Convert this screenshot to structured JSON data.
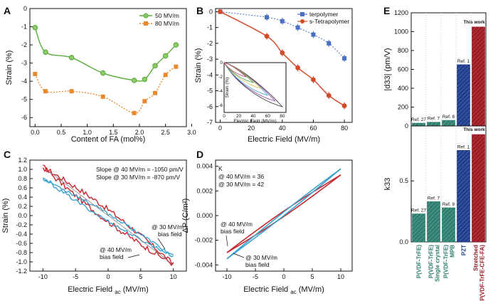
{
  "chart_data": [
    {
      "panel": "A",
      "type": "line",
      "xlabel": "Content of FA (mol%)",
      "ylabel": "Strain (%)",
      "xlim": [
        -0.1,
        2.9
      ],
      "ylim": [
        -6.5,
        0
      ],
      "xticks": [
        "0.0",
        "0.5",
        "1.0",
        "1.5",
        "2.0",
        "2.5",
        "3.0"
      ],
      "yticks": [
        "0",
        "-1",
        "-2",
        "-3",
        "-4",
        "-5",
        "-6"
      ],
      "legend": [
        "50 MV/m",
        "80 MV/m"
      ],
      "series": [
        {
          "name": "50 MV/m",
          "color": "#5bab3a",
          "style": "solid",
          "x": [
            0,
            0.2,
            0.7,
            1.3,
            1.9,
            2.1,
            2.3,
            2.5,
            2.7
          ],
          "y": [
            -1.05,
            -2.4,
            -2.7,
            -3.55,
            -3.95,
            -3.9,
            -3.15,
            -2.6,
            -2.0
          ]
        },
        {
          "name": "80 MV/m",
          "color": "#e8892e",
          "style": "dotted",
          "x": [
            0,
            0.2,
            0.7,
            1.3,
            1.9,
            2.1,
            2.3,
            2.5,
            2.7
          ],
          "y": [
            -3.6,
            -4.55,
            -4.55,
            -4.85,
            -5.75,
            -5.1,
            -4.65,
            -3.65,
            -3.2
          ]
        }
      ]
    },
    {
      "panel": "B",
      "type": "line",
      "xlabel": "Electric Field (MV/m)",
      "ylabel": "Strain (%)",
      "xlim": [
        -3,
        85
      ],
      "ylim": [
        -7,
        0.2
      ],
      "xticks": [
        "0",
        "20",
        "40",
        "60",
        "80"
      ],
      "yticks": [
        "0",
        "-1",
        "-2",
        "-3",
        "-4",
        "-5",
        "-6",
        "-7"
      ],
      "legend": [
        "terpolymer",
        "s-Tetrapolymer"
      ],
      "series": [
        {
          "name": "terpolymer",
          "color": "#4a6fc4",
          "marker": "square",
          "x": [
            0,
            30,
            40,
            50,
            60,
            70,
            80
          ],
          "y": [
            0,
            -0.35,
            -0.6,
            -1.0,
            -1.45,
            -2.0,
            -2.95
          ]
        },
        {
          "name": "s-Tetrapolymer",
          "color": "#d44a28",
          "marker": "circle",
          "x": [
            0,
            30,
            40,
            50,
            60,
            70,
            80
          ],
          "y": [
            0,
            -1.55,
            -2.6,
            -3.55,
            -4.3,
            -5.3,
            -5.95
          ]
        }
      ],
      "inset": {
        "xlabel": "Electric Field (MV/m)",
        "ylabel": "Strain (%)",
        "xticks": [
          "0",
          "20",
          "40",
          "60",
          "80"
        ],
        "yticks": [
          "0",
          "-2",
          "-4",
          "-6"
        ]
      }
    },
    {
      "panel": "C",
      "type": "line",
      "xlabel_main": "Electric Field",
      "xlabel_sub": "ac",
      "xlabel_unit": "(MV/m)",
      "ylabel": "Strain (%)",
      "xlim": [
        -12,
        12
      ],
      "ylim": [
        -1.2,
        1.2
      ],
      "xticks": [
        "-10",
        "-5",
        "0",
        "5",
        "10"
      ],
      "yticks": [
        "1.2",
        "1.0",
        "0.8",
        "0.6",
        "0.4",
        "0.2",
        "0.0",
        "-0.2",
        "-0.4",
        "-0.6",
        "-0.8",
        "-1.0",
        "-1.2"
      ],
      "annotations": [
        "Slope @ 40 MV/m = -1050 pm/V",
        "Slope @ 30 MV/m = -870 pm/V"
      ],
      "callouts": [
        {
          "line1": "@ 30 MV/m",
          "line2": "bias field"
        },
        {
          "line1": "@ 40 MV/m",
          "line2": "bias field"
        }
      ],
      "series": [
        {
          "name": "@ 40 MV/m bias field",
          "color": "#c8262e",
          "x": [
            -10,
            10
          ],
          "y": [
            1.05,
            -1.05
          ]
        },
        {
          "name": "@ 30 MV/m bias field",
          "color": "#3da2cf",
          "x": [
            -10,
            10
          ],
          "y": [
            0.8,
            -0.88
          ]
        }
      ]
    },
    {
      "panel": "D",
      "type": "line",
      "xlabel_main": "Electric Field",
      "xlabel_sub": "ac",
      "xlabel_unit": "(MV/m)",
      "ylabel": "ΔP (C/m²)",
      "xlim": [
        -12,
        12
      ],
      "ylim": [
        -0.0045,
        0.0045
      ],
      "xticks": [
        "-10",
        "-5",
        "0",
        "5",
        "10"
      ],
      "yticks": [
        "0.004",
        "0.002",
        "0.000",
        "-0.002",
        "-0.004"
      ],
      "annotations": [
        "K",
        "@ 40 MV/m = 36",
        "@ 30 MV/m = 42"
      ],
      "callouts": [
        {
          "line1": "@ 40 MV/m",
          "line2": "bias field"
        },
        {
          "line1": "@ 30 MV/m",
          "line2": "bias field"
        }
      ],
      "series": [
        {
          "name": "@ 40 MV/m bias field",
          "color": "#c8262e",
          "x": [
            -10,
            10
          ],
          "y": [
            -0.003,
            0.0033
          ]
        },
        {
          "name": "@ 30 MV/m bias field",
          "color": "#3da2cf",
          "x": [
            -10,
            10
          ],
          "y": [
            -0.0035,
            0.0038
          ]
        }
      ]
    },
    {
      "panel": "E",
      "type": "bar",
      "categories": [
        "P(VDF-TrFE)",
        "P(VDF-TrFE) Single crystal",
        "P(VDF-TrFE) MPB",
        "PZT",
        "Stretched P(VDF-TrFE-CFE-FA)"
      ],
      "category_colors": [
        "#2e7d6e",
        "#2e7d6e",
        "#2e7d6e",
        "#1f3d8a",
        "#9b1b24"
      ],
      "refs": [
        "Ref. 27",
        "Ref. 7",
        "Ref. 8",
        "Ref. 1",
        "This work"
      ],
      "top": {
        "ylabel": "|d33| (pm/V)",
        "ylim": [
          0,
          1200
        ],
        "yticks": [
          "0",
          "200",
          "400",
          "600",
          "800",
          "1000",
          "1200"
        ],
        "values": [
          30,
          40,
          60,
          650,
          1050
        ]
      },
      "bottom": {
        "ylabel": "k33",
        "ylim": [
          0,
          0.95
        ],
        "yticks": [
          "0.0",
          "0.5"
        ],
        "values": [
          0.23,
          0.33,
          0.28,
          0.75,
          0.88
        ]
      }
    }
  ]
}
